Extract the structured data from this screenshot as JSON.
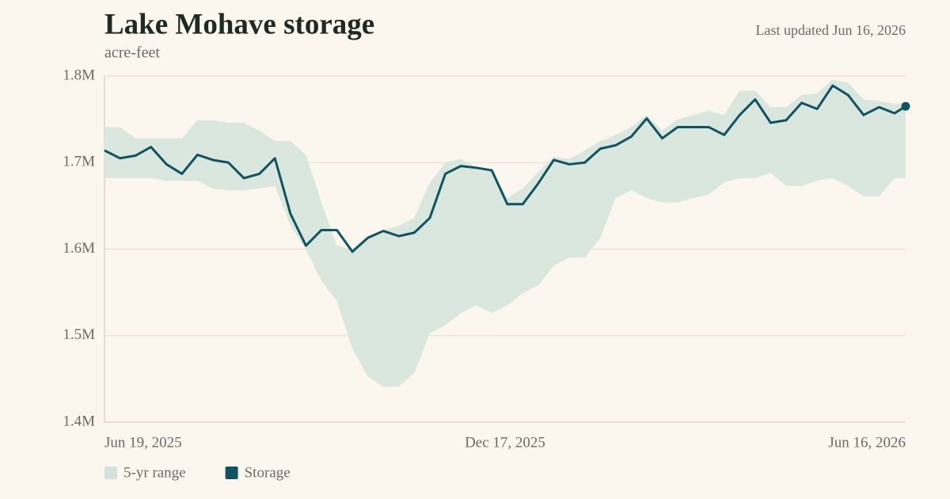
{
  "chart_data": {
    "type": "line",
    "title": "Lake Mohave storage",
    "subtitle": "acre-feet",
    "annotation": "Last updated Jun 16, 2026",
    "x": [
      "2025-06-19",
      "2025-06-26",
      "2025-07-03",
      "2025-07-10",
      "2025-07-17",
      "2025-07-24",
      "2025-07-31",
      "2025-08-07",
      "2025-08-14",
      "2025-08-21",
      "2025-08-28",
      "2025-09-04",
      "2025-09-11",
      "2025-09-18",
      "2025-09-25",
      "2025-10-02",
      "2025-10-09",
      "2025-10-16",
      "2025-10-23",
      "2025-10-30",
      "2025-11-06",
      "2025-11-13",
      "2025-11-20",
      "2025-11-27",
      "2025-12-04",
      "2025-12-11",
      "2025-12-18",
      "2025-12-25",
      "2026-01-01",
      "2026-01-08",
      "2026-01-15",
      "2026-01-22",
      "2026-01-29",
      "2026-02-05",
      "2026-02-12",
      "2026-02-19",
      "2026-02-26",
      "2026-03-05",
      "2026-03-12",
      "2026-03-19",
      "2026-03-26",
      "2026-04-02",
      "2026-04-09",
      "2026-04-16",
      "2026-04-23",
      "2026-04-30",
      "2026-05-07",
      "2026-05-14",
      "2026-05-21",
      "2026-05-28",
      "2026-06-04",
      "2026-06-11",
      "2026-06-16"
    ],
    "series": [
      {
        "name": "5-yr range",
        "color": "#d9e7df",
        "low": [
          1682000,
          1682000,
          1682000,
          1682000,
          1679000,
          1679000,
          1679000,
          1670000,
          1668000,
          1668000,
          1670000,
          1673000,
          1627000,
          1600000,
          1563000,
          1540000,
          1485000,
          1453000,
          1441000,
          1441000,
          1457000,
          1503000,
          1512000,
          1526000,
          1535000,
          1526000,
          1535000,
          1549000,
          1558000,
          1581000,
          1590000,
          1590000,
          1613000,
          1659000,
          1668000,
          1659000,
          1654000,
          1654000,
          1659000,
          1663000,
          1677000,
          1682000,
          1682000,
          1688000,
          1673000,
          1673000,
          1679000,
          1682000,
          1673000,
          1661000,
          1661000,
          1682000,
          1682000
        ],
        "high": [
          1741000,
          1741000,
          1728000,
          1728000,
          1728000,
          1728000,
          1749000,
          1749000,
          1746000,
          1746000,
          1737000,
          1725000,
          1725000,
          1709000,
          1654000,
          1604000,
          1600000,
          1615000,
          1622000,
          1627000,
          1636000,
          1677000,
          1700000,
          1704000,
          1695000,
          1691000,
          1659000,
          1670000,
          1689000,
          1707000,
          1704000,
          1714000,
          1725000,
          1732000,
          1741000,
          1755000,
          1737000,
          1750000,
          1755000,
          1760000,
          1755000,
          1783000,
          1783000,
          1764000,
          1764000,
          1778000,
          1780000,
          1796000,
          1792000,
          1773000,
          1771000,
          1768000,
          1769000
        ]
      },
      {
        "name": "Storage",
        "color": "#0f5460",
        "values": [
          1714000,
          1705000,
          1708000,
          1718000,
          1698000,
          1687000,
          1709000,
          1703000,
          1700000,
          1682000,
          1687000,
          1705000,
          1641000,
          1604000,
          1622000,
          1622000,
          1597000,
          1613000,
          1621000,
          1615000,
          1619000,
          1636000,
          1687000,
          1696000,
          1694000,
          1691000,
          1652000,
          1652000,
          1676000,
          1703000,
          1698000,
          1700000,
          1716000,
          1720000,
          1730000,
          1751000,
          1728000,
          1741000,
          1741000,
          1741000,
          1732000,
          1755000,
          1773000,
          1746000,
          1749000,
          1769000,
          1762000,
          1789000,
          1778000,
          1755000,
          1764000,
          1757000,
          1765000
        ]
      }
    ],
    "xlim": [
      "2025-06-19",
      "2026-06-16"
    ],
    "xticks": [
      {
        "value": "2025-06-19",
        "label": "Jun 19, 2025"
      },
      {
        "value": "2025-12-17",
        "label": "Dec 17, 2025"
      },
      {
        "value": "2026-06-16",
        "label": "Jun 16, 2026"
      }
    ],
    "ylim": [
      1400000,
      1800000
    ],
    "yticks": [
      {
        "value": 1400000,
        "label": "1.4M"
      },
      {
        "value": 1500000,
        "label": "1.5M"
      },
      {
        "value": 1600000,
        "label": "1.6M"
      },
      {
        "value": 1700000,
        "label": "1.7M"
      },
      {
        "value": 1800000,
        "label": "1.8M"
      }
    ],
    "grid": true
  }
}
